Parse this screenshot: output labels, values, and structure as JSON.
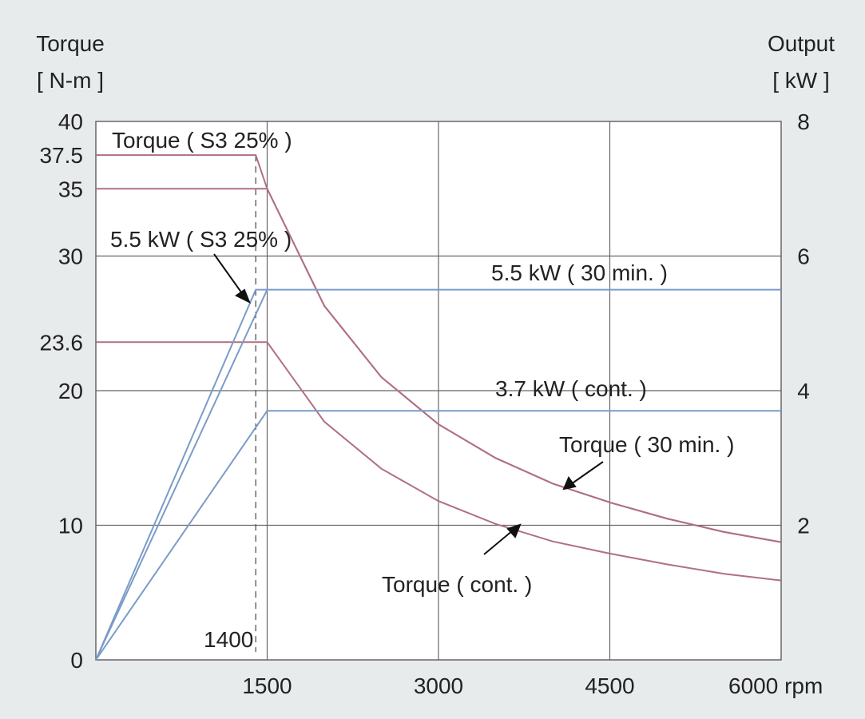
{
  "chart_data": {
    "type": "line",
    "left_axis": {
      "title": "Torque",
      "unit": "[ N-m ]",
      "ylim": [
        0,
        40
      ],
      "ticks": [
        0,
        10,
        20,
        23.6,
        30,
        35,
        37.5,
        40
      ],
      "tick_labels": [
        "0",
        "10",
        "20",
        "23.6",
        "30",
        "35",
        "37.5",
        "40"
      ]
    },
    "right_axis": {
      "title": "Output",
      "unit": "[ kW ]",
      "ylim": [
        0,
        8
      ],
      "ticks": [
        2,
        4,
        6,
        8
      ],
      "tick_labels": [
        "2",
        "4",
        "6",
        "8"
      ]
    },
    "x_axis": {
      "xlim": [
        0,
        6000
      ],
      "ticks": [
        1500,
        3000,
        4500,
        6000
      ],
      "tick_labels": [
        "1500",
        "3000",
        "4500",
        "6000 rpm"
      ],
      "marker": {
        "value": 1400,
        "label": "1400"
      }
    },
    "grid": true,
    "series": [
      {
        "name": "Torque ( S3 25% )",
        "axis": "left",
        "color": "#b07080",
        "points": [
          [
            0,
            37.5
          ],
          [
            1400,
            37.5
          ],
          [
            1500,
            35
          ],
          [
            2000,
            26.3
          ],
          [
            2500,
            21
          ],
          [
            3000,
            17.5
          ],
          [
            3500,
            15
          ],
          [
            4000,
            13.1
          ],
          [
            4500,
            11.7
          ],
          [
            5000,
            10.5
          ],
          [
            5500,
            9.5
          ],
          [
            6000,
            8.75
          ]
        ]
      },
      {
        "name": "Torque ( 30 min. )",
        "axis": "left",
        "color": "#b07080",
        "points": [
          [
            0,
            35
          ],
          [
            1500,
            35
          ],
          [
            2000,
            26.3
          ],
          [
            2500,
            21
          ],
          [
            3000,
            17.5
          ],
          [
            3500,
            15
          ],
          [
            4000,
            13.1
          ],
          [
            4500,
            11.7
          ],
          [
            5000,
            10.5
          ],
          [
            5500,
            9.5
          ],
          [
            6000,
            8.75
          ]
        ]
      },
      {
        "name": "Torque ( cont. )",
        "axis": "left",
        "color": "#b07080",
        "points": [
          [
            0,
            23.6
          ],
          [
            1500,
            23.6
          ],
          [
            2000,
            17.7
          ],
          [
            2500,
            14.2
          ],
          [
            3000,
            11.8
          ],
          [
            3500,
            10.1
          ],
          [
            4000,
            8.8
          ],
          [
            4500,
            7.9
          ],
          [
            5000,
            7.1
          ],
          [
            5500,
            6.4
          ],
          [
            6000,
            5.9
          ]
        ]
      },
      {
        "name": "5.5 kW ( S3 25% )",
        "axis": "right",
        "color": "#7a9cc8",
        "points": [
          [
            0,
            0
          ],
          [
            1400,
            5.5
          ],
          [
            1500,
            5.5
          ]
        ]
      },
      {
        "name": "5.5 kW ( 30 min. )",
        "axis": "right",
        "color": "#7a9cc8",
        "points": [
          [
            0,
            0
          ],
          [
            1500,
            5.5
          ],
          [
            6000,
            5.5
          ]
        ]
      },
      {
        "name": "3.7 kW ( cont. )",
        "axis": "right",
        "color": "#7a9cc8",
        "points": [
          [
            0,
            0
          ],
          [
            1500,
            3.7
          ],
          [
            6000,
            3.7
          ]
        ]
      }
    ],
    "annotations": [
      {
        "id": "torque-s3",
        "text": "Torque ( S3 25% )"
      },
      {
        "id": "kw55-s3",
        "text": "5.5 kW ( S3 25% )"
      },
      {
        "id": "kw55-30",
        "text": "5.5 kW  ( 30 min. )"
      },
      {
        "id": "kw37-cont",
        "text": "3.7 kW ( cont. )"
      },
      {
        "id": "torque-30",
        "text": "Torque ( 30 min. )"
      },
      {
        "id": "torque-cont",
        "text": "Torque ( cont. )"
      }
    ]
  }
}
